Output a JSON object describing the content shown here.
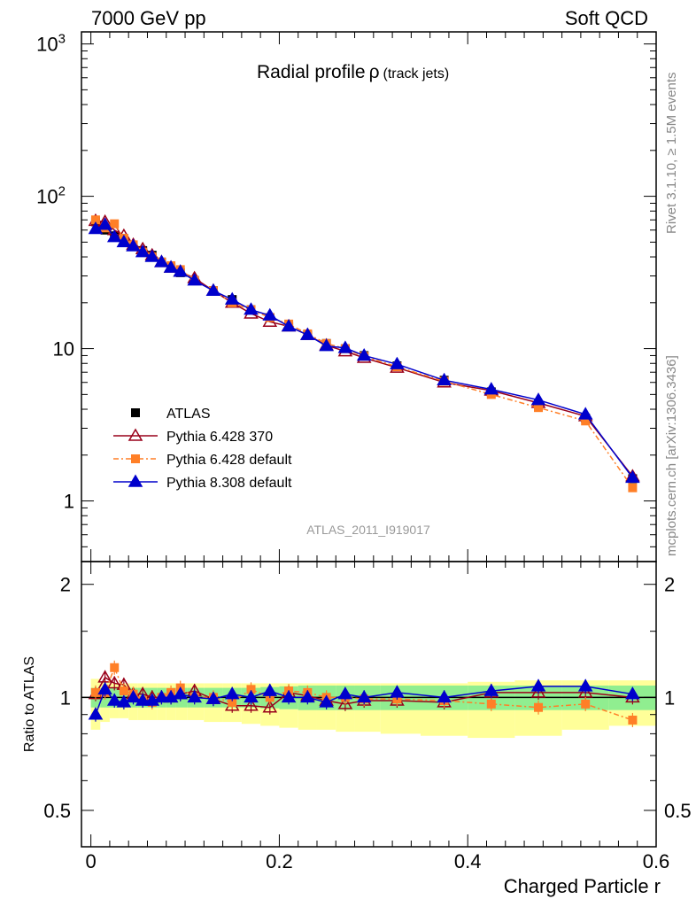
{
  "header": {
    "left": "7000 GeV pp",
    "right": "Soft QCD"
  },
  "side_texts": {
    "rivet": "Rivet 3.1.10, ≥ 1.5M events",
    "mcplots": "mcplots.cern.ch [arXiv:1306.3436]"
  },
  "chart_data": [
    {
      "type": "scatter",
      "title": "Radial profile",
      "title_symbol": "ρ",
      "title_suffix": "(track jets)",
      "analysis_tag": "ATLAS_2011_I919017",
      "yscale": "log",
      "xlim": [
        -0.01,
        0.6
      ],
      "ylim": [
        0.4,
        1200
      ],
      "y_tick_labels": [
        "1",
        "10",
        "10",
        "10"
      ],
      "y_tick_exponents": [
        "",
        "",
        "2",
        "3"
      ],
      "legend_position": "bottom-left",
      "x": [
        0.005,
        0.015,
        0.025,
        0.035,
        0.045,
        0.055,
        0.065,
        0.075,
        0.085,
        0.095,
        0.11,
        0.13,
        0.15,
        0.17,
        0.19,
        0.21,
        0.23,
        0.25,
        0.27,
        0.29,
        0.325,
        0.375,
        0.425,
        0.475,
        0.525,
        0.575
      ],
      "series": [
        {
          "name": "ATLAS",
          "color": "#000000",
          "marker": "square",
          "values": [
            68,
            60,
            55,
            51,
            47,
            44,
            41,
            37,
            34,
            31.5,
            28,
            24,
            21,
            18,
            16,
            14,
            12.3,
            10.8,
            10,
            9,
            7.7,
            6.2,
            5.2,
            4.3,
            3.5,
            1.4
          ]
        },
        {
          "name": "Pythia 6.428 370",
          "color": "#99001a",
          "marker": "open-triangle",
          "values": [
            69,
            68,
            60,
            55,
            48,
            45,
            41,
            37,
            34,
            32,
            29,
            24,
            20,
            17,
            15,
            14,
            12.3,
            10.5,
            9.6,
            8.7,
            7.5,
            6,
            5.3,
            4.4,
            3.6,
            1.45
          ]
        },
        {
          "name": "Pythia 6.428 default",
          "color": "#ff7f27",
          "marker": "square",
          "values": [
            70,
            62,
            66,
            53,
            48,
            43,
            40,
            37,
            35,
            33,
            28,
            24,
            20,
            18,
            16,
            14.5,
            12.5,
            10.8,
            10,
            8.9,
            7.6,
            6.1,
            5,
            4.1,
            3.35,
            1.22
          ]
        },
        {
          "name": "Pythia 8.308 default",
          "color": "#0000cc",
          "marker": "triangle",
          "values": [
            61,
            65,
            54,
            50,
            47,
            43,
            40,
            37,
            34,
            32,
            28,
            24,
            21,
            18,
            16.5,
            14,
            12.3,
            10.4,
            10.1,
            9,
            7.9,
            6.2,
            5.4,
            4.6,
            3.7,
            1.42
          ]
        }
      ]
    },
    {
      "type": "scatter",
      "ylabel": "Ratio to ATLAS",
      "xlabel": "Charged Particle r",
      "xlim": [
        -0.01,
        0.6
      ],
      "ylim": [
        0.4,
        2.3
      ],
      "yscale": "log",
      "x_tick_labels": [
        "0",
        "0.2",
        "0.4",
        "0.6"
      ],
      "y_tick_labels": [
        "0.5",
        "1",
        "2"
      ],
      "band_green_half_width": [
        0.06,
        0.06,
        0.06,
        0.06,
        0.06,
        0.06,
        0.06,
        0.06,
        0.06,
        0.06,
        0.06,
        0.06,
        0.06,
        0.06,
        0.065,
        0.07,
        0.075,
        0.075,
        0.075,
        0.075,
        0.075,
        0.075,
        0.075,
        0.075,
        0.075,
        0.075
      ],
      "band_yellow_low": [
        0.82,
        0.86,
        0.88,
        0.88,
        0.87,
        0.87,
        0.87,
        0.87,
        0.87,
        0.87,
        0.87,
        0.86,
        0.86,
        0.85,
        0.84,
        0.83,
        0.82,
        0.82,
        0.81,
        0.81,
        0.8,
        0.79,
        0.78,
        0.79,
        0.82,
        0.84
      ],
      "band_yellow_high": [
        1.12,
        1.1,
        1.09,
        1.09,
        1.09,
        1.09,
        1.09,
        1.09,
        1.09,
        1.09,
        1.09,
        1.09,
        1.09,
        1.09,
        1.09,
        1.09,
        1.09,
        1.09,
        1.09,
        1.09,
        1.09,
        1.09,
        1.1,
        1.11,
        1.11,
        1.11
      ],
      "series": [
        {
          "name": "Pythia 6.428 370",
          "values": [
            1.02,
            1.13,
            1.09,
            1.08,
            1.02,
            1.02,
            1,
            1,
            1,
            1.02,
            1.04,
            0.99,
            0.95,
            0.95,
            0.94,
            1.03,
            1.01,
            0.98,
            0.96,
            0.98,
            0.98,
            0.97,
            1.03,
            1.03,
            1.03,
            1.0
          ]
        },
        {
          "name": "Pythia 6.428 default",
          "values": [
            1.03,
            1.03,
            1.2,
            1.04,
            1.02,
            0.98,
            0.97,
            1.0,
            1.03,
            1.06,
            1.0,
            1.0,
            0.97,
            1.05,
            1.0,
            1.04,
            1.03,
            1.0,
            1.0,
            0.99,
            0.99,
            0.98,
            0.96,
            0.94,
            0.96,
            0.87
          ]
        },
        {
          "name": "Pythia 8.308 default",
          "values": [
            0.9,
            1.05,
            0.98,
            0.97,
            1.0,
            0.98,
            0.98,
            1.0,
            1.0,
            1.02,
            1.0,
            0.99,
            1.02,
            1.0,
            1.04,
            1.0,
            1.0,
            0.97,
            1.02,
            1.0,
            1.03,
            1.0,
            1.04,
            1.07,
            1.07,
            1.02
          ]
        }
      ]
    }
  ]
}
